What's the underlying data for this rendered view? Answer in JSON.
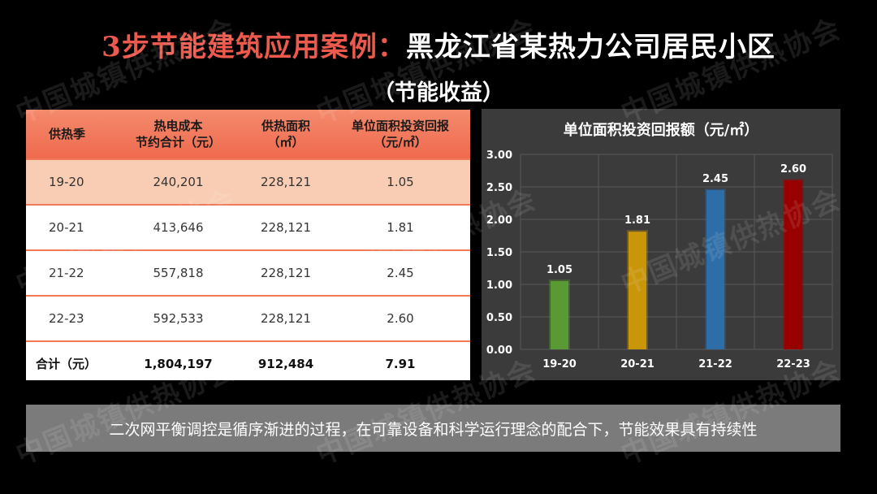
{
  "title": {
    "part_red": "3步节能建筑应用案例：",
    "part_white": "黑龙江省某热力公司居民小区"
  },
  "subtitle": "（节能收益）",
  "table": {
    "headers": [
      "供热季",
      "热电成本\n节约合计（元）",
      "供热面积\n（㎡）",
      "单位面积投资回报\n（元/㎡）"
    ],
    "rows": [
      [
        "19-20",
        "240,201",
        "228,121",
        "1.05"
      ],
      [
        "20-21",
        "413,646",
        "228,121",
        "1.81"
      ],
      [
        "21-22",
        "557,818",
        "228,121",
        "2.45"
      ],
      [
        "22-23",
        "592,533",
        "228,121",
        "2.60"
      ]
    ],
    "total": [
      "合计（元）",
      "1,804,197",
      "912,484",
      "7.91"
    ]
  },
  "chart_data": {
    "type": "bar",
    "title": "单位面积投资回报额（元/㎡）",
    "categories": [
      "19-20",
      "20-21",
      "21-22",
      "22-23"
    ],
    "values": [
      1.05,
      1.81,
      2.45,
      2.6
    ],
    "value_labels": [
      "1.05",
      "1.81",
      "2.45",
      "2.60"
    ],
    "colors": [
      "#5a9a35",
      "#c9960a",
      "#2e6ea8",
      "#980000"
    ],
    "ylim": [
      0,
      3
    ],
    "yticks": [
      "0.00",
      "0.50",
      "1.00",
      "1.50",
      "2.00",
      "2.50",
      "3.00"
    ],
    "grid": true,
    "xlabel": "",
    "ylabel": ""
  },
  "note": "二次网平衡调控是循序渐进的过程，在可靠设备和科学运行理念的配合下，节能效果具有持续性",
  "watermark": "中国城镇供热协会"
}
